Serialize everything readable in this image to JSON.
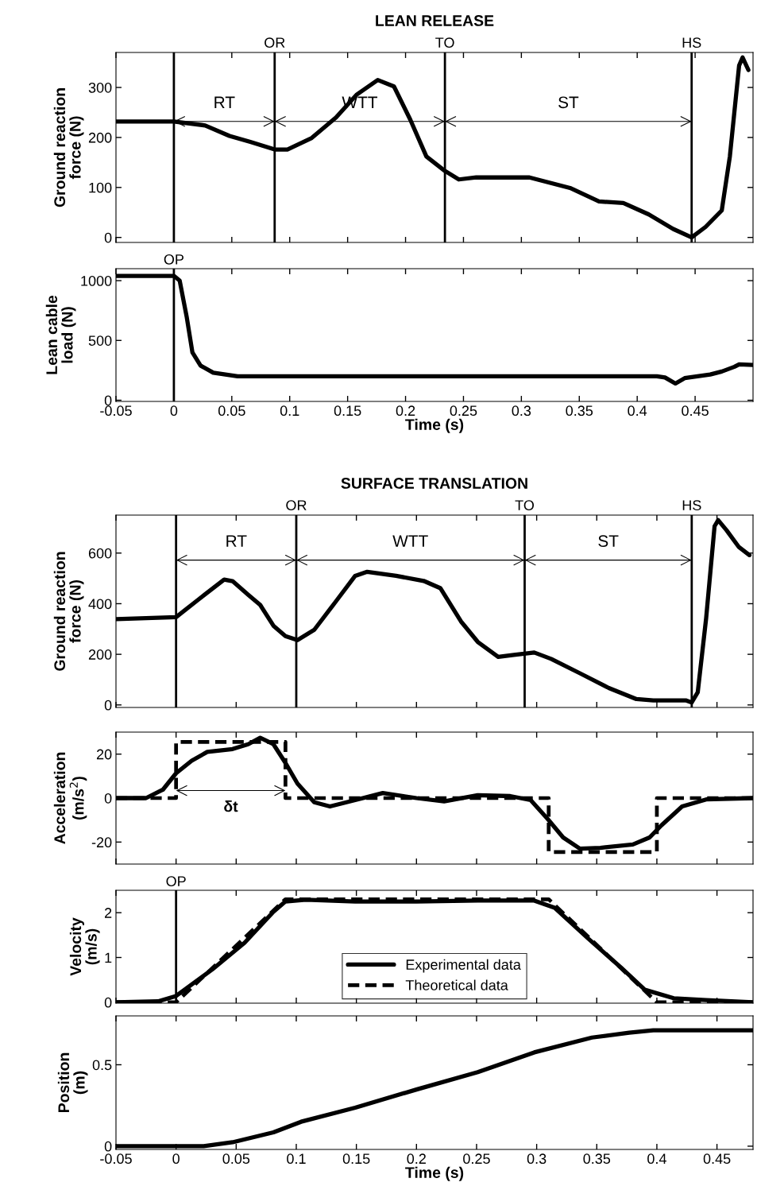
{
  "chart_data": [
    {
      "type": "line",
      "title": "LEAN RELEASE",
      "ylabel": "Ground reaction\nforce (N)",
      "xlim": [
        -0.05,
        0.5
      ],
      "xticks": [
        -0.05,
        0,
        0.05,
        0.1,
        0.15,
        0.2,
        0.25,
        0.3,
        0.35,
        0.4,
        0.45
      ],
      "ylim": [
        -10,
        370
      ],
      "yticks": [
        0,
        100,
        200,
        300
      ],
      "tick_labels": "y",
      "grid": false,
      "legend": false,
      "series": [
        {
          "color": "#000000",
          "x": [
            -0.05,
            0,
            0.027,
            0.048,
            0.066,
            0.087,
            0.098,
            0.119,
            0.14,
            0.158,
            0.176,
            0.19,
            0.204,
            0.218,
            0.234,
            0.246,
            0.261,
            0.307,
            0.342,
            0.367,
            0.388,
            0.41,
            0.431,
            0.447,
            0.459,
            0.473,
            0.48,
            0.488,
            0.491,
            0.496
          ],
          "values": [
            232,
            232,
            224,
            203,
            191,
            176,
            176,
            199,
            240,
            286,
            315,
            302,
            236,
            162,
            133,
            116,
            120,
            120,
            99,
            72,
            69,
            46,
            17,
            0,
            21,
            54,
            162,
            344,
            360,
            335
          ]
        }
      ],
      "ref_lines": [
        {
          "axis": "x",
          "value": 0,
          "label": null
        },
        {
          "axis": "x",
          "value": 0.087,
          "label": "OR"
        },
        {
          "axis": "x",
          "value": 0.234,
          "label": "TO"
        },
        {
          "axis": "x",
          "value": 0.447,
          "label": "HS"
        }
      ],
      "annotations": [
        "RT",
        "WTT",
        "ST"
      ]
    },
    {
      "type": "line",
      "ylabel": "Lean cable\nload (N)",
      "xlabel": "Time (s)",
      "xlim": [
        -0.05,
        0.5
      ],
      "xticks": [
        -0.05,
        0,
        0.05,
        0.1,
        0.15,
        0.2,
        0.25,
        0.3,
        0.35,
        0.4,
        0.45
      ],
      "ylim": [
        -10,
        1100
      ],
      "yticks": [
        0,
        500,
        1000
      ],
      "grid": false,
      "legend": false,
      "series": [
        {
          "color": "#000000",
          "x": [
            -0.05,
            0,
            0.005,
            0.011,
            0.016,
            0.023,
            0.034,
            0.055,
            0.1,
            0.15,
            0.2,
            0.25,
            0.3,
            0.35,
            0.417,
            0.424,
            0.433,
            0.441,
            0.463,
            0.473,
            0.484,
            0.488,
            0.5
          ],
          "values": [
            1040,
            1040,
            1000,
            700,
            400,
            290,
            230,
            200,
            200,
            200,
            200,
            200,
            200,
            200,
            200,
            190,
            140,
            185,
            215,
            240,
            280,
            300,
            295
          ]
        }
      ],
      "ref_lines": [
        {
          "axis": "x",
          "value": 0,
          "label": "OP"
        }
      ]
    },
    {
      "type": "line",
      "title": "SURFACE TRANSLATION",
      "ylabel": "Ground reaction\nforce (N)",
      "xlim": [
        -0.05,
        0.48
      ],
      "xticks": [
        -0.05,
        0,
        0.05,
        0.1,
        0.15,
        0.2,
        0.25,
        0.3,
        0.35,
        0.4,
        0.45
      ],
      "ylim": [
        -10,
        750
      ],
      "yticks": [
        0,
        200,
        400,
        600
      ],
      "tick_labels": "y",
      "grid": false,
      "legend": false,
      "series": [
        {
          "color": "#000000",
          "x": [
            -0.05,
            0,
            0.019,
            0.04,
            0.047,
            0.06,
            0.07,
            0.081,
            0.091,
            0.101,
            0.115,
            0.132,
            0.149,
            0.159,
            0.183,
            0.206,
            0.22,
            0.237,
            0.251,
            0.268,
            0.281,
            0.298,
            0.312,
            0.336,
            0.36,
            0.383,
            0.397,
            0.424,
            0.429,
            0.434,
            0.441,
            0.448,
            0.451,
            0.458,
            0.468,
            0.477
          ],
          "values": [
            339,
            347,
            418,
            495,
            489,
            435,
            395,
            313,
            272,
            256,
            297,
            403,
            510,
            526,
            510,
            490,
            461,
            330,
            249,
            190,
            198,
            207,
            182,
            125,
            67,
            23,
            18,
            18,
            10,
            50,
            343,
            706,
            730,
            690,
            625,
            592
          ]
        }
      ],
      "ref_lines": [
        {
          "axis": "x",
          "value": 0,
          "label": null
        },
        {
          "axis": "x",
          "value": 0.1,
          "label": "OR"
        },
        {
          "axis": "x",
          "value": 0.29,
          "label": "TO"
        },
        {
          "axis": "x",
          "value": 0.429,
          "label": "HS"
        }
      ],
      "annotations": [
        "RT",
        "WTT",
        "ST"
      ]
    },
    {
      "type": "line",
      "ylabel": "Acceleration\n(m/s$^{2}$)",
      "xlim": [
        -0.05,
        0.48
      ],
      "xticks": [
        -0.05,
        0,
        0.05,
        0.1,
        0.15,
        0.2,
        0.25,
        0.3,
        0.35,
        0.4,
        0.45
      ],
      "ylim": [
        -30,
        30
      ],
      "yticks": [
        -20,
        0,
        20
      ],
      "tick_labels": "y",
      "grid": false,
      "legend": false,
      "series": [
        {
          "color": "#000000",
          "x": [
            -0.05,
            -0.025,
            -0.011,
            0,
            0.013,
            0.026,
            0.047,
            0.06,
            0.07,
            0.081,
            0.091,
            0.101,
            0.115,
            0.128,
            0.149,
            0.172,
            0.2,
            0.223,
            0.251,
            0.278,
            0.295,
            0.309,
            0.322,
            0.336,
            0.353,
            0.38,
            0.394,
            0.404,
            0.421,
            0.441,
            0.48
          ],
          "values": [
            0,
            0,
            3.8,
            11.3,
            17,
            21,
            22.3,
            24.5,
            27.4,
            24.5,
            16,
            6.6,
            -1.9,
            -3.8,
            -0.9,
            2.3,
            0,
            -1.5,
            1.3,
            0.9,
            -0.9,
            -9.4,
            -17.9,
            -23,
            -22.6,
            -21.1,
            -17.9,
            -12.3,
            -3.8,
            -0.6,
            0
          ]
        },
        {
          "type": "step",
          "color": "#000000",
          "line_style": "dashed",
          "x": [
            -0.05,
            0,
            0.091,
            0.31,
            0.4,
            0.48
          ],
          "values": [
            0,
            25.5,
            0,
            -24.5,
            0,
            0
          ]
        }
      ],
      "annotations": [
        "δt"
      ]
    },
    {
      "type": "line",
      "ylabel": "Velocity\n(m/s)",
      "xlim": [
        -0.05,
        0.48
      ],
      "xticks": [
        -0.05,
        0,
        0.05,
        0.1,
        0.15,
        0.2,
        0.25,
        0.3,
        0.35,
        0.4,
        0.45
      ],
      "ylim": [
        -0.02,
        2.5
      ],
      "yticks": [
        0,
        1,
        2
      ],
      "tick_labels": "y",
      "grid": false,
      "legend": "bottom",
      "series": [
        {
          "name": "Experimental data",
          "color": "#000000",
          "x": [
            -0.05,
            -0.015,
            0,
            0.03,
            0.057,
            0.081,
            0.091,
            0.108,
            0.149,
            0.2,
            0.251,
            0.298,
            0.315,
            0.343,
            0.37,
            0.39,
            0.414,
            0.441,
            0.48
          ],
          "values": [
            0,
            0.02,
            0.14,
            0.73,
            1.33,
            2.02,
            2.25,
            2.29,
            2.25,
            2.25,
            2.27,
            2.27,
            2.11,
            1.42,
            0.78,
            0.28,
            0.09,
            0.05,
            0
          ]
        },
        {
          "name": "Theoretical data",
          "color": "#000000",
          "line_style": "dashed",
          "x": [
            -0.05,
            0,
            0.091,
            0.31,
            0.4,
            0.48
          ],
          "values": [
            0,
            0,
            2.3,
            2.3,
            0,
            0
          ]
        }
      ],
      "ref_lines": [
        {
          "axis": "x",
          "value": 0,
          "label": "OP"
        }
      ]
    },
    {
      "type": "line",
      "ylabel": "Position\n(m)",
      "xlabel": "Time (s)",
      "xlim": [
        -0.05,
        0.48
      ],
      "xticks": [
        -0.05,
        0,
        0.05,
        0.1,
        0.15,
        0.2,
        0.25,
        0.3,
        0.35,
        0.4,
        0.45
      ],
      "ylim": [
        -0.02,
        0.8
      ],
      "yticks": [
        0,
        0.5
      ],
      "grid": false,
      "legend": false,
      "series": [
        {
          "color": "#000000",
          "x": [
            -0.05,
            0.023,
            0.047,
            0.081,
            0.104,
            0.149,
            0.2,
            0.251,
            0.298,
            0.346,
            0.377,
            0.397,
            0.48
          ],
          "values": [
            0,
            0,
            0.024,
            0.085,
            0.15,
            0.236,
            0.348,
            0.455,
            0.576,
            0.667,
            0.697,
            0.712,
            0.712
          ]
        }
      ]
    }
  ]
}
